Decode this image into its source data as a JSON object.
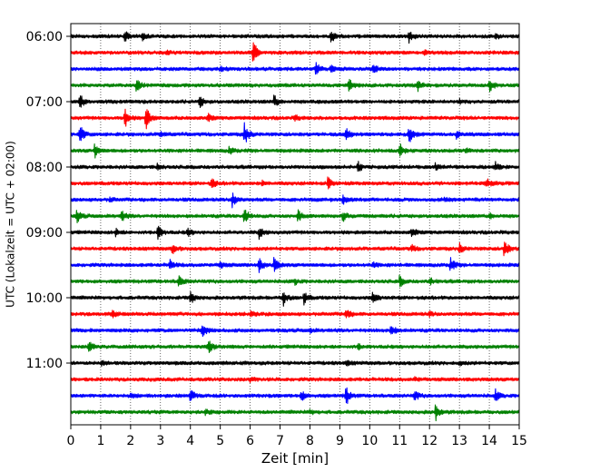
{
  "chart_data": {
    "type": "line",
    "chart_kind": "helicorder",
    "title": "",
    "xlabel": "Zeit  [min]",
    "ylabel": "UTC (Lokalzeit = UTC + 02:00)",
    "xlim": [
      0,
      15
    ],
    "x_ticks": [
      0,
      1,
      2,
      3,
      4,
      5,
      6,
      7,
      8,
      9,
      10,
      11,
      12,
      13,
      14,
      15
    ],
    "x_tick_labels": [
      "0",
      "1",
      "2",
      "3",
      "4",
      "5",
      "6",
      "7",
      "8",
      "9",
      "10",
      "11",
      "12",
      "13",
      "14",
      "15"
    ],
    "y_tick_labels": [
      "06:00",
      "07:00",
      "08:00",
      "09:00",
      "10:00",
      "11:00"
    ],
    "y_tick_trace_index": [
      0,
      4,
      8,
      12,
      16,
      20
    ],
    "trace_minutes": 15,
    "trace_count": 24,
    "grid": "vertical dotted at each minute",
    "trace_colors": [
      "#000000",
      "#ff0000",
      "#0000ff",
      "#008000"
    ],
    "events": [
      {
        "trace": 0,
        "t": 1.8,
        "a": 0.8
      },
      {
        "trace": 0,
        "t": 8.7,
        "a": 1.0
      },
      {
        "trace": 0,
        "t": 11.3,
        "a": 0.9
      },
      {
        "trace": 0,
        "t": 2.4,
        "a": 0.4
      },
      {
        "trace": 0,
        "t": 14.2,
        "a": 0.4
      },
      {
        "trace": 1,
        "t": 6.1,
        "a": 2.0
      },
      {
        "trace": 1,
        "t": 3.2,
        "a": 0.3
      },
      {
        "trace": 1,
        "t": 11.8,
        "a": 0.3
      },
      {
        "trace": 2,
        "t": 8.2,
        "a": 1.0
      },
      {
        "trace": 2,
        "t": 10.1,
        "a": 0.9
      },
      {
        "trace": 2,
        "t": 8.7,
        "a": 0.5
      },
      {
        "trace": 2,
        "t": 5.0,
        "a": 0.3
      },
      {
        "trace": 3,
        "t": 2.2,
        "a": 1.0
      },
      {
        "trace": 3,
        "t": 9.3,
        "a": 1.2
      },
      {
        "trace": 3,
        "t": 11.6,
        "a": 1.0
      },
      {
        "trace": 3,
        "t": 14.0,
        "a": 1.0
      },
      {
        "trace": 4,
        "t": 0.3,
        "a": 1.1
      },
      {
        "trace": 4,
        "t": 4.3,
        "a": 0.9
      },
      {
        "trace": 4,
        "t": 6.8,
        "a": 0.9
      },
      {
        "trace": 4,
        "t": 13.0,
        "a": 0.3
      },
      {
        "trace": 5,
        "t": 1.8,
        "a": 1.5
      },
      {
        "trace": 5,
        "t": 2.5,
        "a": 2.0
      },
      {
        "trace": 5,
        "t": 4.6,
        "a": 0.5
      },
      {
        "trace": 5,
        "t": 7.5,
        "a": 0.4
      },
      {
        "trace": 6,
        "t": 0.3,
        "a": 1.5
      },
      {
        "trace": 6,
        "t": 5.8,
        "a": 1.8
      },
      {
        "trace": 6,
        "t": 9.2,
        "a": 1.0
      },
      {
        "trace": 6,
        "t": 11.3,
        "a": 1.6
      },
      {
        "trace": 6,
        "t": 3.0,
        "a": 0.5
      },
      {
        "trace": 6,
        "t": 12.9,
        "a": 0.5
      },
      {
        "trace": 7,
        "t": 0.8,
        "a": 1.0
      },
      {
        "trace": 7,
        "t": 11.0,
        "a": 1.0
      },
      {
        "trace": 7,
        "t": 5.3,
        "a": 0.5
      },
      {
        "trace": 7,
        "t": 13.2,
        "a": 0.4
      },
      {
        "trace": 8,
        "t": 9.6,
        "a": 0.8
      },
      {
        "trace": 8,
        "t": 2.9,
        "a": 0.4
      },
      {
        "trace": 8,
        "t": 12.2,
        "a": 0.5
      },
      {
        "trace": 8,
        "t": 14.2,
        "a": 0.6
      },
      {
        "trace": 9,
        "t": 4.7,
        "a": 0.8
      },
      {
        "trace": 9,
        "t": 8.6,
        "a": 0.9
      },
      {
        "trace": 9,
        "t": 13.9,
        "a": 0.8
      },
      {
        "trace": 9,
        "t": 6.4,
        "a": 0.3
      },
      {
        "trace": 10,
        "t": 5.4,
        "a": 1.2
      },
      {
        "trace": 10,
        "t": 9.1,
        "a": 0.8
      },
      {
        "trace": 10,
        "t": 1.3,
        "a": 0.3
      },
      {
        "trace": 10,
        "t": 12.5,
        "a": 0.3
      },
      {
        "trace": 11,
        "t": 0.2,
        "a": 1.0
      },
      {
        "trace": 11,
        "t": 1.7,
        "a": 0.8
      },
      {
        "trace": 11,
        "t": 5.8,
        "a": 1.3
      },
      {
        "trace": 11,
        "t": 7.6,
        "a": 0.8
      },
      {
        "trace": 11,
        "t": 9.1,
        "a": 0.8
      },
      {
        "trace": 11,
        "t": 14.0,
        "a": 0.4
      },
      {
        "trace": 12,
        "t": 1.5,
        "a": 0.5
      },
      {
        "trace": 12,
        "t": 2.9,
        "a": 1.2
      },
      {
        "trace": 12,
        "t": 3.9,
        "a": 0.6
      },
      {
        "trace": 12,
        "t": 6.3,
        "a": 0.9
      },
      {
        "trace": 12,
        "t": 11.4,
        "a": 0.6
      },
      {
        "trace": 13,
        "t": 3.4,
        "a": 0.8
      },
      {
        "trace": 13,
        "t": 11.4,
        "a": 0.5
      },
      {
        "trace": 13,
        "t": 13.0,
        "a": 0.7
      },
      {
        "trace": 13,
        "t": 14.5,
        "a": 1.4
      },
      {
        "trace": 14,
        "t": 3.3,
        "a": 0.8
      },
      {
        "trace": 14,
        "t": 5.0,
        "a": 0.6
      },
      {
        "trace": 14,
        "t": 6.3,
        "a": 1.0
      },
      {
        "trace": 14,
        "t": 6.8,
        "a": 1.2
      },
      {
        "trace": 14,
        "t": 12.7,
        "a": 1.2
      },
      {
        "trace": 14,
        "t": 10.1,
        "a": 0.4
      },
      {
        "trace": 15,
        "t": 3.6,
        "a": 1.0
      },
      {
        "trace": 15,
        "t": 11.0,
        "a": 0.8
      },
      {
        "trace": 15,
        "t": 12.0,
        "a": 0.5
      },
      {
        "trace": 15,
        "t": 7.5,
        "a": 0.4
      },
      {
        "trace": 16,
        "t": 4.0,
        "a": 1.0
      },
      {
        "trace": 16,
        "t": 7.1,
        "a": 1.3
      },
      {
        "trace": 16,
        "t": 7.8,
        "a": 0.9
      },
      {
        "trace": 16,
        "t": 10.1,
        "a": 1.0
      },
      {
        "trace": 17,
        "t": 1.4,
        "a": 0.5
      },
      {
        "trace": 17,
        "t": 9.2,
        "a": 0.9
      },
      {
        "trace": 17,
        "t": 6.0,
        "a": 0.3
      },
      {
        "trace": 17,
        "t": 12.0,
        "a": 0.3
      },
      {
        "trace": 18,
        "t": 4.4,
        "a": 1.2
      },
      {
        "trace": 18,
        "t": 10.7,
        "a": 1.0
      },
      {
        "trace": 18,
        "t": 8.0,
        "a": 0.3
      },
      {
        "trace": 19,
        "t": 0.6,
        "a": 1.0
      },
      {
        "trace": 19,
        "t": 4.6,
        "a": 1.0
      },
      {
        "trace": 19,
        "t": 9.6,
        "a": 0.4
      },
      {
        "trace": 20,
        "t": 1.0,
        "a": 0.3
      },
      {
        "trace": 20,
        "t": 9.2,
        "a": 0.4
      },
      {
        "trace": 20,
        "t": 13.0,
        "a": 0.3
      },
      {
        "trace": 21,
        "t": 6.0,
        "a": 0.3
      },
      {
        "trace": 21,
        "t": 11.5,
        "a": 0.3
      },
      {
        "trace": 22,
        "t": 4.0,
        "a": 0.9
      },
      {
        "trace": 22,
        "t": 7.7,
        "a": 0.9
      },
      {
        "trace": 22,
        "t": 9.2,
        "a": 1.5
      },
      {
        "trace": 22,
        "t": 11.5,
        "a": 0.8
      },
      {
        "trace": 22,
        "t": 14.2,
        "a": 0.9
      },
      {
        "trace": 22,
        "t": 2.0,
        "a": 0.4
      },
      {
        "trace": 23,
        "t": 12.2,
        "a": 1.2
      },
      {
        "trace": 23,
        "t": 4.5,
        "a": 0.3
      },
      {
        "trace": 23,
        "t": 8.0,
        "a": 0.3
      }
    ]
  }
}
